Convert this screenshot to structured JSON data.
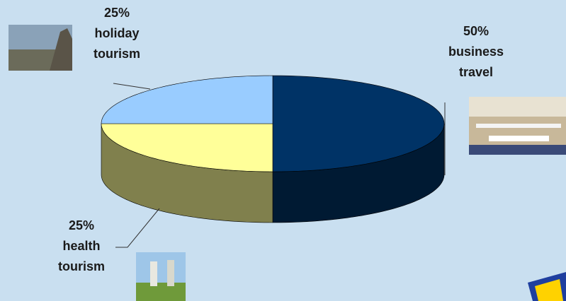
{
  "chart_data": {
    "type": "pie",
    "categories": [
      "business travel",
      "health tourism",
      "holiday tourism"
    ],
    "values": [
      50,
      25,
      25
    ],
    "value_labels": [
      "50%",
      "25%",
      "25%"
    ],
    "colors": [
      "#003366",
      "#ffff99",
      "#99ccff"
    ]
  }
}
